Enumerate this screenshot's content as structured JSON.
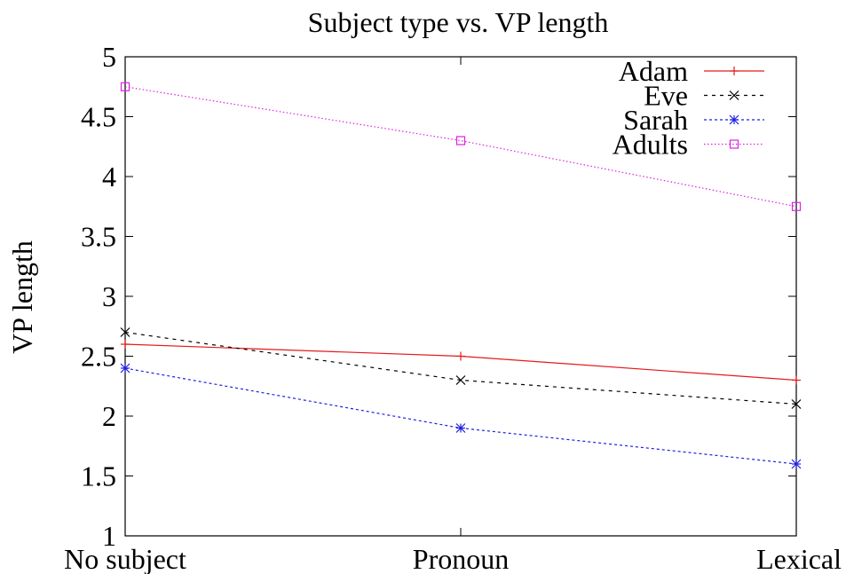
{
  "chart_data": {
    "type": "line",
    "title": "Subject type vs. VP length",
    "xlabel": "",
    "ylabel": "VP length",
    "categories": [
      "No subject",
      "Pronoun",
      "Lexical"
    ],
    "ylim": [
      1,
      5
    ],
    "yticks": [
      "1",
      "1.5",
      "2",
      "2.5",
      "3",
      "3.5",
      "4",
      "4.5",
      "5"
    ],
    "grid": false,
    "legend_position": "top-right",
    "series": [
      {
        "name": "Adam",
        "values": [
          2.6,
          2.5,
          2.3
        ],
        "color": "#e41a1c",
        "marker": "plus",
        "dash": ""
      },
      {
        "name": "Eve",
        "values": [
          2.7,
          2.3,
          2.1
        ],
        "color": "#000000",
        "marker": "cross",
        "dash": "4,5"
      },
      {
        "name": "Sarah",
        "values": [
          2.4,
          1.9,
          1.6
        ],
        "color": "#1f1fe0",
        "marker": "star",
        "dash": "3,3"
      },
      {
        "name": "Adults",
        "values": [
          4.75,
          4.3,
          3.75
        ],
        "color": "#e020e0",
        "marker": "square",
        "dash": "1.5,2.5"
      }
    ]
  }
}
